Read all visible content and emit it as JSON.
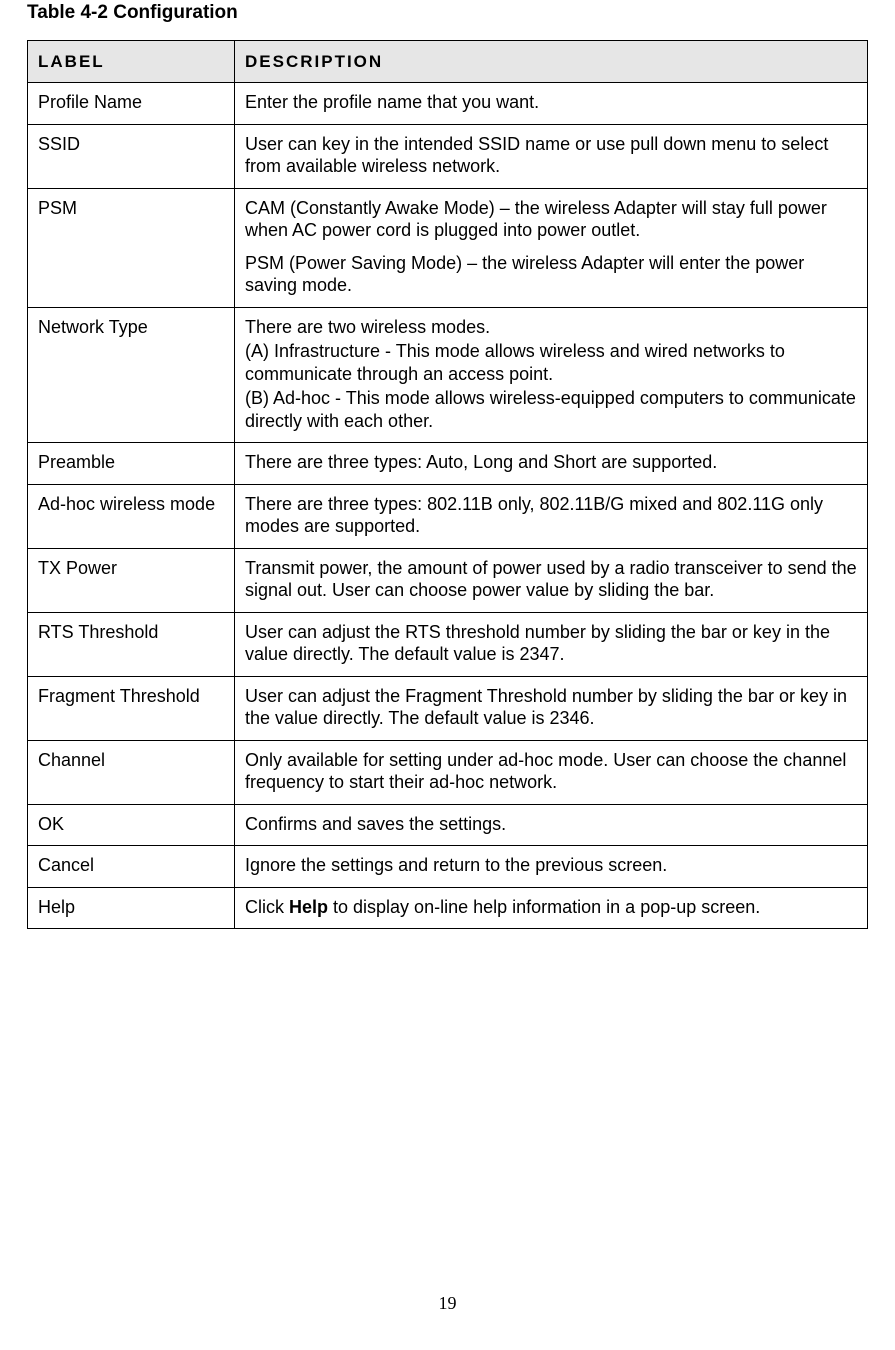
{
  "caption_prefix": "Table 4-2 ",
  "caption_title": "Configuration",
  "header_label": "LABEL",
  "header_description": "DESCRIPTION",
  "page_number": "19",
  "rows": [
    {
      "label": "Profile Name",
      "desc": [
        "Enter the profile name that you want."
      ]
    },
    {
      "label": "SSID",
      "desc": [
        "User can key in the intended SSID name or use pull down menu to select from available wireless network."
      ]
    },
    {
      "label": "PSM",
      "desc": [
        "CAM (Constantly Awake Mode) – the wireless Adapter will stay full power when AC power cord is plugged into power outlet.",
        "PSM (Power Saving Mode) – the wireless Adapter will enter the power saving mode."
      ]
    },
    {
      "label": "Network Type",
      "desc_tight": [
        "There are two wireless modes.",
        "(A) Infrastructure - This mode allows wireless and wired networks to communicate through an access point.",
        "(B) Ad-hoc - This mode allows wireless-equipped computers to communicate directly with each other."
      ]
    },
    {
      "label": "Preamble",
      "desc": [
        "There are three types: Auto, Long and Short are supported."
      ]
    },
    {
      "label": "Ad-hoc wireless mode",
      "desc": [
        "There are three types: 802.11B only, 802.11B/G mixed and 802.11G only modes are supported."
      ]
    },
    {
      "label": "TX Power",
      "desc": [
        "Transmit power, the amount of power used by a radio transceiver to send the signal out. User can choose power value by sliding the bar."
      ]
    },
    {
      "label": "RTS Threshold",
      "desc": [
        "User can adjust the RTS threshold number by sliding the bar or key in the value directly. The default value is 2347."
      ]
    },
    {
      "label": "Fragment Threshold",
      "desc": [
        "User can adjust the Fragment Threshold number by sliding the bar or key in the value directly. The default value is 2346."
      ]
    },
    {
      "label": "Channel",
      "desc": [
        "Only available for setting under ad-hoc mode. User can choose the channel frequency to start their ad-hoc network."
      ]
    },
    {
      "label": "OK",
      "desc": [
        "Confirms and saves the settings."
      ]
    },
    {
      "label": "Cancel",
      "desc": [
        "Ignore the settings and return to the previous screen."
      ]
    },
    {
      "label": "Help",
      "desc_rich": {
        "pre": "Click ",
        "bold": "Help",
        "post": " to display on-line help information in a pop-up screen."
      }
    }
  ]
}
